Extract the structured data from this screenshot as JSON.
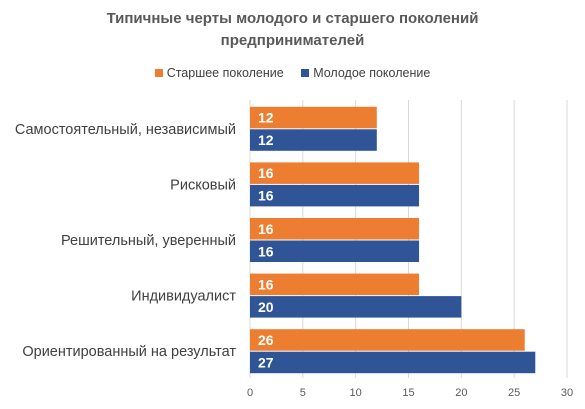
{
  "chart_data": {
    "type": "bar",
    "orientation": "horizontal",
    "title": "Типичные черты молодого и старшего поколений предпринимателей",
    "title_lines": [
      "Типичные черты молодого и старшего поколений",
      "предпринимателей"
    ],
    "categories": [
      "Самостоятельный, независимый",
      "Рисковый",
      "Решительный, уверенный",
      "Индивидуалист",
      "Ориентированный на результат"
    ],
    "series": [
      {
        "name": "Старшее поколение",
        "color": "#ED7D31",
        "values": [
          12,
          16,
          16,
          16,
          26
        ]
      },
      {
        "name": "Молодое поколение",
        "color": "#2F5597",
        "values": [
          12,
          16,
          16,
          20,
          27
        ]
      }
    ],
    "xlim": [
      0,
      30
    ],
    "xticks": [
      0,
      5,
      10,
      15,
      20,
      25,
      30
    ],
    "grid": true,
    "legend_position": "top",
    "data_labels": true
  }
}
